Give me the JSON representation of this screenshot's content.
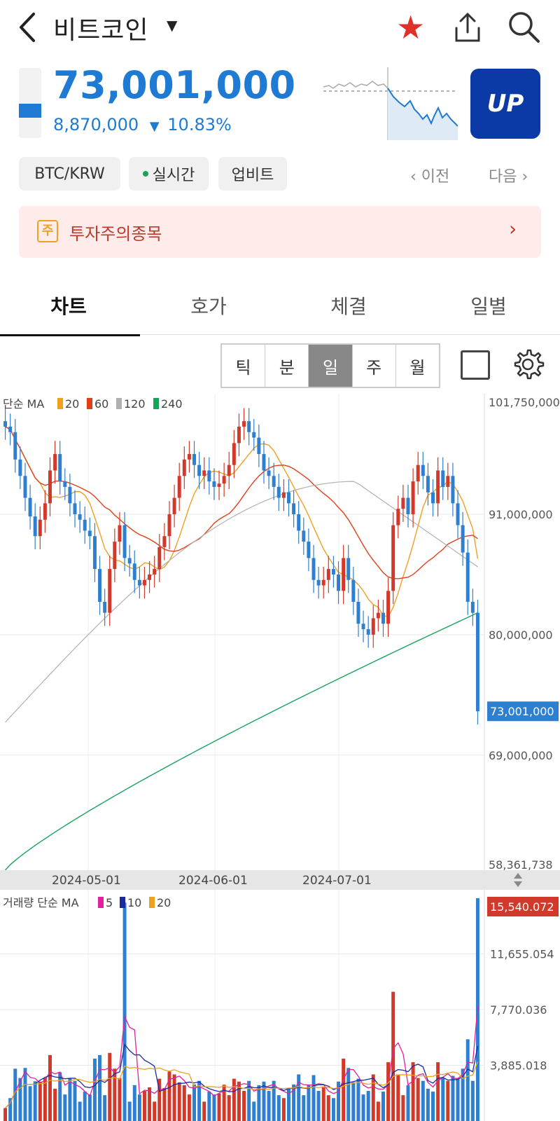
{
  "header": {
    "title": "비트코인",
    "back_icon": "chevron-left-icon",
    "dropdown_icon": "caret-down-icon",
    "favorite_icon": "star-icon",
    "share_icon": "share-icon",
    "search_icon": "search-icon"
  },
  "price": {
    "current": "73,001,000",
    "change_amount": "8,870,000",
    "change_arrow": "▼",
    "change_percent": "10.83%",
    "color": "#1f7ad4",
    "logo_text": "UP"
  },
  "chips": {
    "pair": "BTC/KRW",
    "live": "실시간",
    "exchange": "업비트",
    "prev": "이전",
    "next": "다음"
  },
  "warning": {
    "badge": "주",
    "text": "투자주의종목"
  },
  "tabs": [
    "차트",
    "호가",
    "체결",
    "일별"
  ],
  "periods": [
    "틱",
    "분",
    "일",
    "주",
    "월"
  ],
  "active_period": "일",
  "chart_data": {
    "type": "candlestick",
    "price_legend": {
      "label": "단순 MA",
      "items": [
        {
          "name": "20",
          "color": "#f0a020"
        },
        {
          "name": "60",
          "color": "#e0401a"
        },
        {
          "name": "120",
          "color": "#b0b0b0"
        },
        {
          "name": "240",
          "color": "#17a35a"
        }
      ]
    },
    "y_ticks": [
      "101,750,000",
      "91,000,000",
      "80,000,000",
      "69,000,000",
      "58,361,738"
    ],
    "y_tick_values": [
      101750000,
      91000000,
      80000000,
      69000000,
      58361738
    ],
    "current_label": "73,001,000",
    "x_ticks": [
      "2024-05-01",
      "2024-06-01",
      "2024-07-01"
    ],
    "ylim": [
      58361738,
      101750000
    ],
    "close_series": [
      99000000,
      98500000,
      96000000,
      94500000,
      92500000,
      90800000,
      89000000,
      90500000,
      92000000,
      95000000,
      96500000,
      94000000,
      93500000,
      92000000,
      91000000,
      90500000,
      89500000,
      89000000,
      86000000,
      83000000,
      82000000,
      86000000,
      88500000,
      90000000,
      87000000,
      86500000,
      85000000,
      84500000,
      85000000,
      85500000,
      86000000,
      88000000,
      89000000,
      91000000,
      92500000,
      94500000,
      96000000,
      96500000,
      95500000,
      94500000,
      95000000,
      94000000,
      93500000,
      93800000,
      94500000,
      95500000,
      97500000,
      99000000,
      99500000,
      98500000,
      98000000,
      96500000,
      95000000,
      94500000,
      93500000,
      92500000,
      93000000,
      92000000,
      91000000,
      89500000,
      88500000,
      87000000,
      85000000,
      84500000,
      85000000,
      86000000,
      85500000,
      84000000,
      87000000,
      85000000,
      83000000,
      81000000,
      80500000,
      80000000,
      81500000,
      82000000,
      81000000,
      84000000,
      90000000,
      91500000,
      92500000,
      91000000,
      94000000,
      95500000,
      94500000,
      93000000,
      92000000,
      95000000,
      93500000,
      94500000,
      92000000,
      90000000,
      87500000,
      83000000,
      82000000,
      73001000
    ],
    "volume_legend": {
      "label": "거래량 단순 MA",
      "items": [
        {
          "name": "5",
          "color": "#e020a0"
        },
        {
          "name": "10",
          "color": "#1a2a9a"
        },
        {
          "name": "20",
          "color": "#f0a020"
        }
      ]
    },
    "volume_ticks": [
      "15,540.072",
      "11,655.054",
      "7,770.036",
      "3,885.018"
    ],
    "volume_max": 15540.072
  }
}
